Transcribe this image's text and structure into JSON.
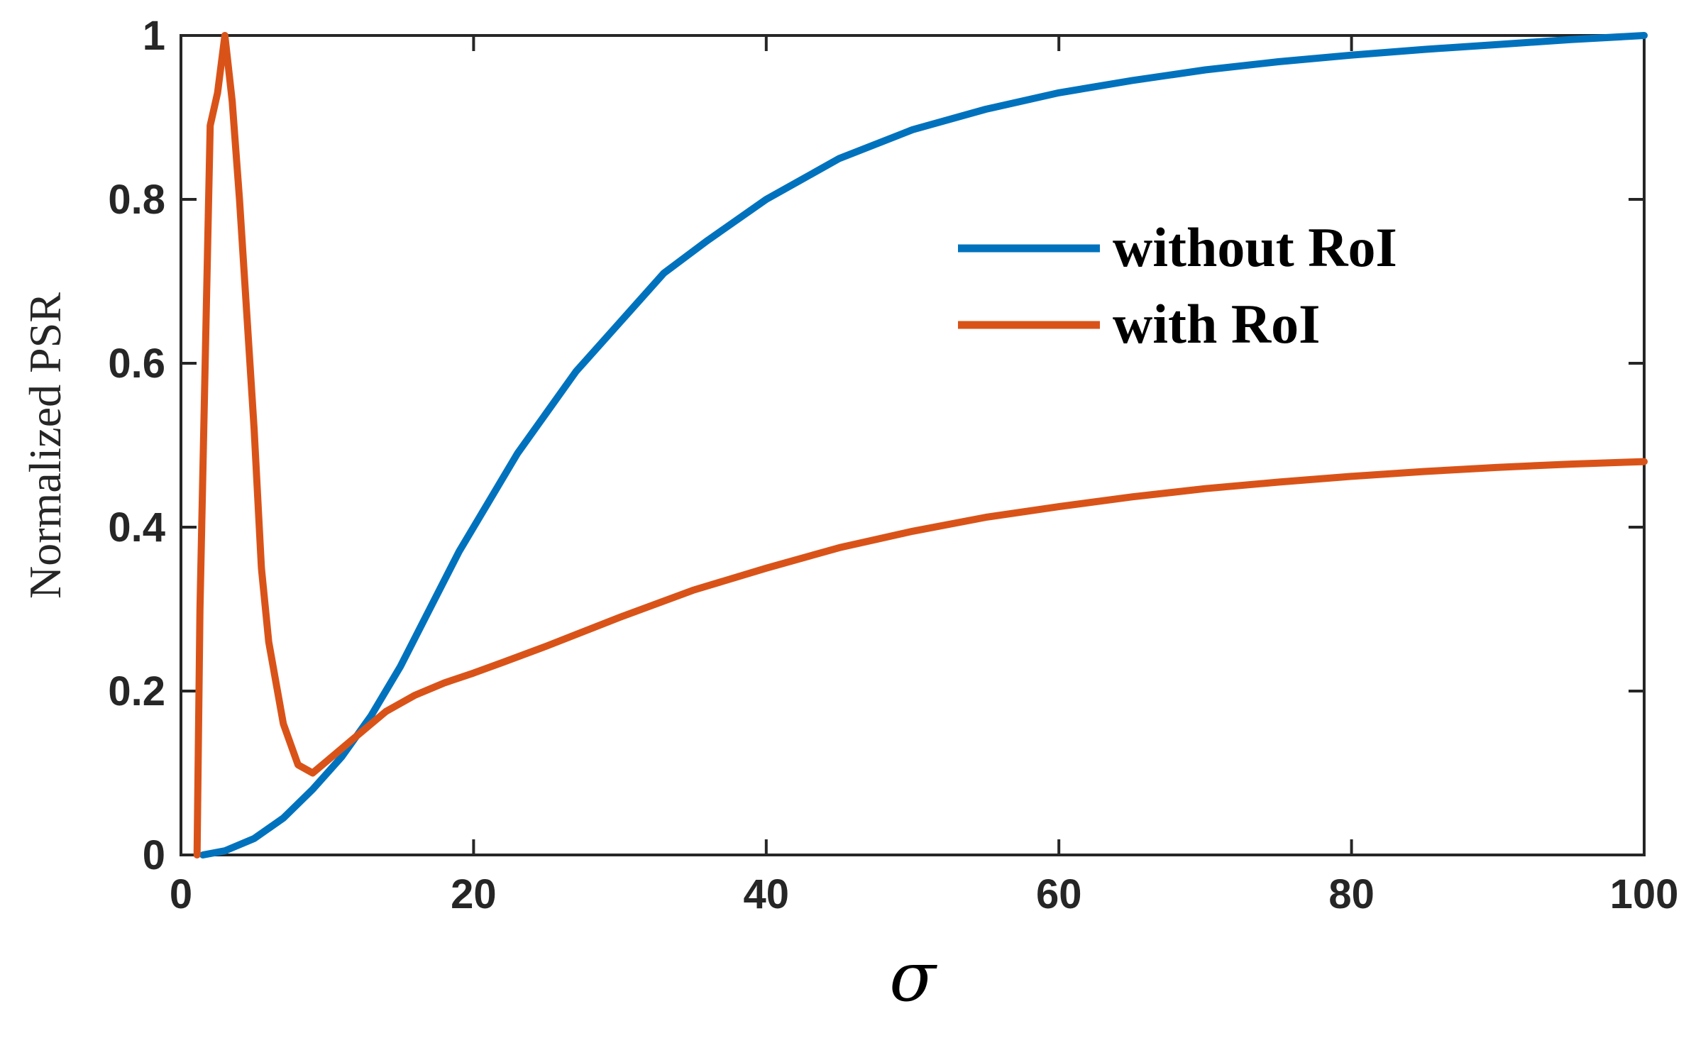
{
  "chart_data": {
    "type": "line",
    "title": "",
    "xlabel": "σ",
    "ylabel": "Normalized PSR",
    "xlim": [
      0,
      100
    ],
    "ylim": [
      0,
      1
    ],
    "xticks": [
      0,
      20,
      40,
      60,
      80,
      100
    ],
    "yticks": [
      0,
      0.2,
      0.4,
      0.6,
      0.8,
      1
    ],
    "xtick_labels": [
      "0",
      "20",
      "40",
      "60",
      "80",
      "100"
    ],
    "ytick_labels": [
      "0",
      "0.2",
      "0.4",
      "0.6",
      "0.8",
      "1"
    ],
    "grid": false,
    "legend_position": "right, upper-middle",
    "series": [
      {
        "name": "without RoI",
        "color": "#0072BD",
        "x": [
          1.5,
          3,
          5,
          7,
          9,
          11,
          13,
          15,
          17,
          19,
          21,
          23,
          25,
          27,
          30,
          33,
          36,
          40,
          45,
          50,
          55,
          60,
          65,
          70,
          75,
          80,
          85,
          90,
          95,
          100
        ],
        "y": [
          0.0,
          0.005,
          0.02,
          0.045,
          0.08,
          0.12,
          0.17,
          0.23,
          0.3,
          0.37,
          0.43,
          0.49,
          0.54,
          0.59,
          0.65,
          0.71,
          0.75,
          0.8,
          0.85,
          0.885,
          0.91,
          0.93,
          0.945,
          0.958,
          0.968,
          0.976,
          0.983,
          0.989,
          0.995,
          1.0
        ]
      },
      {
        "name": "with RoI",
        "color": "#D95319",
        "x": [
          1.1,
          1.3,
          2,
          2.5,
          3,
          3.5,
          4,
          5,
          5.5,
          6,
          7,
          8,
          9,
          10,
          11,
          12,
          13,
          14,
          15,
          16,
          18,
          20,
          22,
          25,
          30,
          35,
          40,
          45,
          50,
          55,
          60,
          65,
          70,
          75,
          80,
          85,
          90,
          95,
          100
        ],
        "y": [
          0.0,
          0.3,
          0.89,
          0.93,
          1.0,
          0.92,
          0.8,
          0.52,
          0.35,
          0.26,
          0.16,
          0.11,
          0.1,
          0.115,
          0.13,
          0.145,
          0.16,
          0.175,
          0.185,
          0.195,
          0.21,
          0.222,
          0.235,
          0.255,
          0.29,
          0.323,
          0.35,
          0.375,
          0.395,
          0.412,
          0.425,
          0.437,
          0.447,
          0.455,
          0.462,
          0.468,
          0.473,
          0.477,
          0.48
        ]
      }
    ]
  }
}
